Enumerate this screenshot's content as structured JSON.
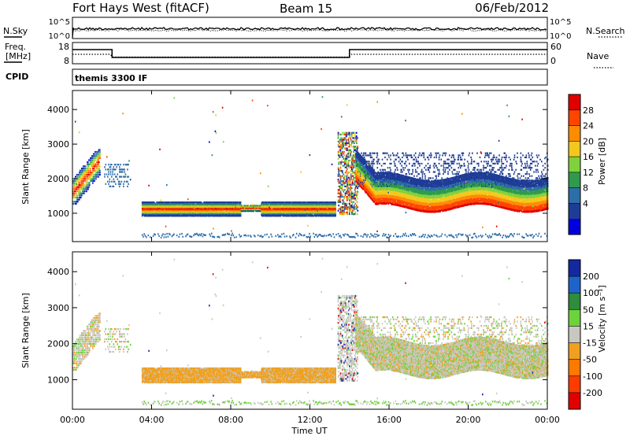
{
  "header": {
    "station": "Fort Hays West (fitACF)",
    "beam": "Beam 15",
    "date": "06/Feb/2012"
  },
  "noise_panel": {
    "left_label": "N.Sky",
    "right_label": "N.Search",
    "yticks": [
      "10^5",
      "10^0"
    ]
  },
  "freq_panel": {
    "left_label_1": "Freq.",
    "left_label_2": "[MHz]",
    "right_label": "Nave",
    "left_ticks": [
      "18",
      "8"
    ],
    "right_ticks": [
      "60",
      "0"
    ]
  },
  "cpid_panel": {
    "left_label": "CPID",
    "text": "themis 3300 IF"
  },
  "chart_data": [
    {
      "type": "heatmap",
      "quantity": "Power",
      "ylabel": "Slant Range [km]",
      "colorbar_label": "Power [dB]",
      "colorbar_ticks": [
        "28",
        "24",
        "20",
        "16",
        "12",
        "8",
        "4"
      ],
      "colorbar_colors": [
        "#e00000",
        "#ff4500",
        "#ff8c00",
        "#f2c81e",
        "#7fd23c",
        "#2f9a4c",
        "#2e6ea8",
        "#1e3c96",
        "#0000dc"
      ],
      "yticks": [
        1000,
        2000,
        3000,
        4000
      ],
      "ylim": [
        180,
        4550
      ],
      "xlim_hours": [
        0,
        24
      ],
      "xticks": [
        "00:00",
        "04:00",
        "08:00",
        "12:00",
        "16:00",
        "20:00",
        "00:00"
      ]
    },
    {
      "type": "heatmap",
      "quantity": "Velocity",
      "ylabel": "Slant Range [km]",
      "colorbar_label": "Velocity [m s⁻¹]",
      "colorbar_ticks": [
        "200",
        "100",
        "50",
        "15",
        "-15",
        "-50",
        "-100",
        "-200"
      ],
      "colorbar_colors": [
        "#1428a0",
        "#1e64c8",
        "#2e8c3c",
        "#6ed23c",
        "#c8c8c0",
        "#f0a020",
        "#ff7800",
        "#ff3c00",
        "#e00000"
      ],
      "yticks": [
        1000,
        2000,
        3000,
        4000
      ],
      "ylim": [
        180,
        4550
      ],
      "xlim_hours": [
        0,
        24
      ],
      "xticks": [
        "00:00",
        "04:00",
        "08:00",
        "12:00",
        "16:00",
        "20:00",
        "00:00"
      ],
      "xlabel": "Time UT"
    }
  ]
}
